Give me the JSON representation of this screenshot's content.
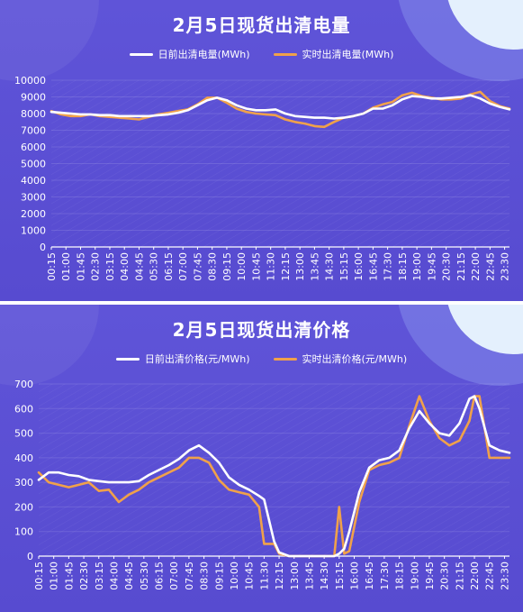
{
  "colors": {
    "day_ahead": "#ffffff",
    "real_time": "#f0a14a",
    "panel": "#5a4fd3"
  },
  "chart_data": [
    {
      "type": "line",
      "title": "2月5日现货出清电量",
      "ylim": [
        0,
        10000
      ],
      "yticks": [
        0,
        1000,
        2000,
        3000,
        4000,
        5000,
        6000,
        7000,
        8000,
        9000,
        10000
      ],
      "xtick_labels": [
        "00:15",
        "01:00",
        "01:45",
        "02:30",
        "03:15",
        "04:00",
        "04:45",
        "05:30",
        "06:15",
        "07:00",
        "07:45",
        "08:30",
        "09:15",
        "10:00",
        "10:45",
        "11:30",
        "12:15",
        "13:00",
        "13:45",
        "14:30",
        "15:15",
        "16:00",
        "16:45",
        "17:30",
        "18:15",
        "19:00",
        "19:45",
        "20:30",
        "21:15",
        "22:00",
        "22:45",
        "23:30"
      ],
      "x": [
        "00:15",
        "00:45",
        "01:15",
        "01:45",
        "02:15",
        "02:45",
        "03:15",
        "03:45",
        "04:15",
        "04:45",
        "05:15",
        "05:45",
        "06:15",
        "06:45",
        "07:15",
        "07:45",
        "08:15",
        "08:45",
        "09:15",
        "09:45",
        "10:15",
        "10:45",
        "11:15",
        "11:45",
        "12:15",
        "12:45",
        "13:15",
        "13:45",
        "14:15",
        "14:45",
        "15:15",
        "15:45",
        "16:15",
        "16:45",
        "17:15",
        "17:45",
        "18:15",
        "18:45",
        "19:15",
        "19:45",
        "20:15",
        "20:45",
        "21:15",
        "21:45",
        "22:15",
        "22:45",
        "23:15",
        "23:45"
      ],
      "series": [
        {
          "name": "日前出清电量(MWh)",
          "color_key": "day_ahead",
          "values": [
            8100,
            8050,
            8000,
            7950,
            7950,
            7900,
            7900,
            7850,
            7850,
            7850,
            7850,
            7900,
            7950,
            8050,
            8200,
            8500,
            8800,
            8950,
            8800,
            8500,
            8300,
            8200,
            8200,
            8250,
            8000,
            7850,
            7800,
            7750,
            7750,
            7700,
            7750,
            7850,
            8000,
            8300,
            8300,
            8500,
            8850,
            9050,
            9000,
            8900,
            8900,
            8950,
            9000,
            9100,
            8900,
            8600,
            8400,
            8250
          ]
        },
        {
          "name": "实时出清电量(MWh)",
          "color_key": "real_time",
          "values": [
            8150,
            7950,
            7850,
            7850,
            7950,
            7850,
            7800,
            7750,
            7700,
            7650,
            7800,
            7950,
            8050,
            8150,
            8250,
            8550,
            8950,
            8950,
            8650,
            8300,
            8100,
            8000,
            7950,
            7900,
            7650,
            7500,
            7400,
            7250,
            7200,
            7500,
            7750,
            7850,
            8000,
            8350,
            8550,
            8700,
            9100,
            9250,
            9050,
            8950,
            8850,
            8850,
            8900,
            9150,
            9300,
            8750,
            8450,
            8300
          ]
        }
      ]
    },
    {
      "type": "line",
      "title": "2月5日现货出清价格",
      "ylim": [
        0,
        700
      ],
      "yticks": [
        0,
        100,
        200,
        300,
        400,
        500,
        600,
        700
      ],
      "xtick_labels": [
        "00:15",
        "01:00",
        "01:45",
        "02:30",
        "03:15",
        "04:00",
        "04:45",
        "05:30",
        "06:15",
        "07:00",
        "07:45",
        "08:30",
        "09:15",
        "10:00",
        "10:45",
        "11:30",
        "12:15",
        "13:00",
        "13:45",
        "14:30",
        "15:15",
        "16:00",
        "16:45",
        "17:30",
        "18:15",
        "19:00",
        "19:45",
        "20:30",
        "21:15",
        "22:00",
        "22:45",
        "23:30"
      ],
      "x": [
        "00:15",
        "00:45",
        "01:15",
        "01:45",
        "02:15",
        "02:45",
        "03:15",
        "03:45",
        "04:15",
        "04:45",
        "05:15",
        "05:45",
        "06:15",
        "06:45",
        "07:15",
        "07:45",
        "08:15",
        "08:45",
        "09:15",
        "09:45",
        "10:15",
        "10:45",
        "11:15",
        "11:30",
        "12:00",
        "12:15",
        "12:45",
        "13:15",
        "13:45",
        "14:15",
        "14:45",
        "15:00",
        "15:15",
        "15:30",
        "15:45",
        "16:15",
        "16:45",
        "17:15",
        "17:45",
        "18:15",
        "18:45",
        "19:15",
        "19:45",
        "20:15",
        "20:45",
        "21:15",
        "21:45",
        "22:00",
        "22:15",
        "22:45",
        "23:15",
        "23:45"
      ],
      "series": [
        {
          "name": "日前出清价格(元/MWh)",
          "color_key": "day_ahead",
          "values": [
            310,
            340,
            340,
            330,
            325,
            310,
            305,
            300,
            300,
            300,
            305,
            330,
            350,
            370,
            395,
            430,
            450,
            420,
            380,
            320,
            290,
            270,
            245,
            230,
            60,
            15,
            0,
            0,
            0,
            0,
            0,
            0,
            10,
            30,
            100,
            260,
            360,
            390,
            400,
            430,
            520,
            590,
            540,
            500,
            490,
            540,
            640,
            650,
            600,
            450,
            430,
            420
          ]
        },
        {
          "name": "实时出清价格(元/MWh)",
          "color_key": "real_time",
          "values": [
            340,
            300,
            290,
            280,
            290,
            300,
            265,
            270,
            220,
            250,
            270,
            300,
            320,
            340,
            360,
            400,
            400,
            380,
            310,
            270,
            260,
            250,
            200,
            50,
            50,
            10,
            0,
            0,
            0,
            0,
            0,
            0,
            200,
            10,
            20,
            220,
            350,
            370,
            380,
            400,
            530,
            650,
            550,
            480,
            450,
            470,
            550,
            650,
            650,
            400,
            400,
            400
          ]
        }
      ]
    }
  ]
}
